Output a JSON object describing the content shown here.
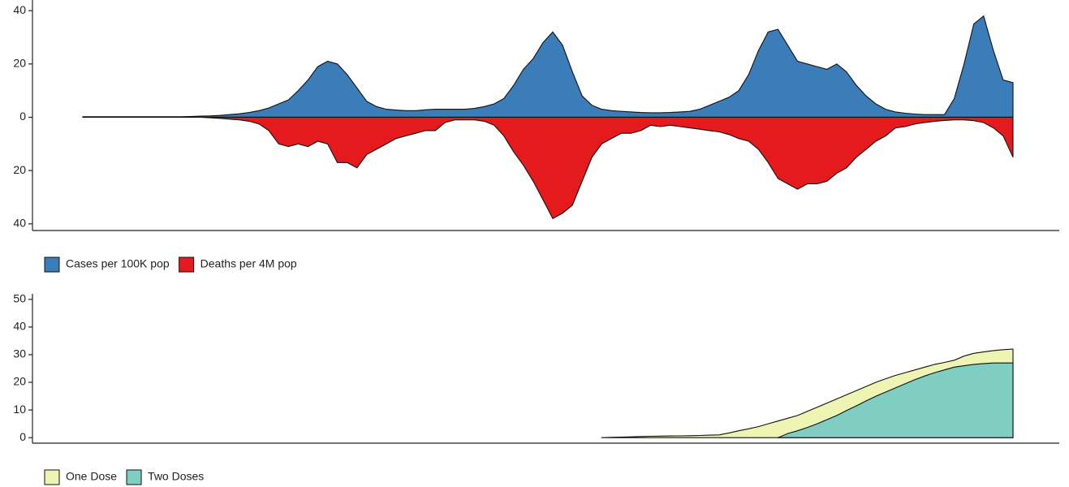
{
  "chart_data": [
    {
      "type": "area",
      "ylim": [
        -42.5,
        44
      ],
      "yticks": [
        {
          "value": -40,
          "label": "40"
        },
        {
          "value": -20,
          "label": "20"
        },
        0,
        20,
        40
      ],
      "series": [
        {
          "name": "Cases per 100K pop",
          "color": "#3a7db8",
          "values": [
            0.2,
            0.2,
            0.2,
            0.2,
            0.2,
            0.2,
            0.2,
            0.2,
            0.2,
            0.2,
            0.2,
            0.3,
            0.4,
            0.5,
            0.7,
            1,
            1.3,
            1.8,
            2.5,
            3.5,
            5,
            6.5,
            10,
            14,
            19,
            21,
            20,
            16,
            11,
            6,
            4,
            3,
            2.7,
            2.5,
            2.5,
            2.8,
            3,
            3,
            3,
            3,
            3.3,
            4,
            5,
            7,
            12,
            18,
            22,
            28,
            32,
            27,
            17,
            8,
            4.5,
            3,
            2.5,
            2.2,
            2,
            1.8,
            1.7,
            1.7,
            1.8,
            2,
            2.2,
            3,
            4.5,
            6,
            7.5,
            10,
            16,
            25,
            32,
            33,
            27,
            21,
            20,
            19,
            18,
            20,
            17,
            12,
            8,
            5,
            3,
            2,
            1.5,
            1.2,
            1,
            1,
            1,
            7,
            20,
            35,
            38,
            25,
            14,
            13
          ]
        },
        {
          "name": "Deaths per 4M pop",
          "color": "#e41a1c",
          "values": [
            0,
            0,
            0,
            0,
            0,
            0,
            0,
            0,
            0,
            0,
            0,
            0,
            0,
            -0.2,
            -0.4,
            -0.7,
            -1,
            -1.5,
            -2.5,
            -5,
            -10,
            -11,
            -10,
            -11,
            -9,
            -10,
            -17,
            -17,
            -19,
            -14,
            -12,
            -10,
            -8,
            -7,
            -6,
            -5,
            -5,
            -2,
            -1,
            -1,
            -1,
            -1.5,
            -3,
            -7,
            -13,
            -18,
            -24,
            -31,
            -38,
            -36,
            -33,
            -24,
            -15,
            -10,
            -8,
            -6,
            -6,
            -5,
            -3,
            -3.5,
            -3,
            -3.5,
            -4,
            -4.5,
            -5,
            -5.5,
            -6.5,
            -8,
            -9,
            -12,
            -17,
            -23,
            -25,
            -27,
            -25,
            -25,
            -24,
            -21,
            -19,
            -15,
            -12,
            -9,
            -7,
            -4,
            -3.5,
            -2.5,
            -2,
            -1.5,
            -1.2,
            -1,
            -1,
            -1.3,
            -2,
            -4,
            -7,
            -15
          ]
        }
      ]
    },
    {
      "type": "area",
      "ylim": [
        -2,
        52
      ],
      "yticks": [
        0,
        10,
        20,
        30,
        40,
        50
      ],
      "series": [
        {
          "name": "One Dose",
          "color": "#eef5b2",
          "values": [
            null,
            null,
            null,
            null,
            null,
            null,
            null,
            null,
            null,
            null,
            null,
            null,
            null,
            null,
            null,
            null,
            null,
            null,
            null,
            null,
            null,
            null,
            null,
            null,
            null,
            null,
            null,
            null,
            null,
            null,
            null,
            null,
            null,
            null,
            null,
            null,
            null,
            null,
            null,
            null,
            null,
            null,
            null,
            null,
            null,
            null,
            null,
            null,
            null,
            null,
            null,
            null,
            null,
            0,
            0.1,
            0.2,
            0.3,
            0.4,
            0.5,
            0.55,
            0.6,
            0.65,
            0.7,
            0.8,
            0.9,
            1,
            1.7,
            2.5,
            3.2,
            4,
            5,
            6,
            7,
            8,
            9.5,
            11,
            12.5,
            14,
            15.5,
            17,
            18.5,
            20,
            21.3,
            22.5,
            23.5,
            24.5,
            25.5,
            26.5,
            27.2,
            28,
            29.5,
            30.5,
            31,
            31.5,
            31.8,
            32
          ]
        },
        {
          "name": "Two Doses",
          "color": "#80cdc1",
          "values": [
            null,
            null,
            null,
            null,
            null,
            null,
            null,
            null,
            null,
            null,
            null,
            null,
            null,
            null,
            null,
            null,
            null,
            null,
            null,
            null,
            null,
            null,
            null,
            null,
            null,
            null,
            null,
            null,
            null,
            null,
            null,
            null,
            null,
            null,
            null,
            null,
            null,
            null,
            null,
            null,
            null,
            null,
            null,
            null,
            null,
            null,
            null,
            null,
            null,
            null,
            null,
            null,
            null,
            null,
            null,
            null,
            null,
            null,
            null,
            null,
            null,
            null,
            null,
            null,
            null,
            null,
            null,
            null,
            null,
            null,
            null,
            0,
            1.5,
            2.5,
            3.7,
            5,
            6.5,
            8,
            9.8,
            11.5,
            13.3,
            15,
            16.5,
            18,
            19.5,
            21,
            22.3,
            23.5,
            24.5,
            25.5,
            26,
            26.5,
            26.8,
            27,
            27,
            27
          ]
        }
      ]
    }
  ]
}
